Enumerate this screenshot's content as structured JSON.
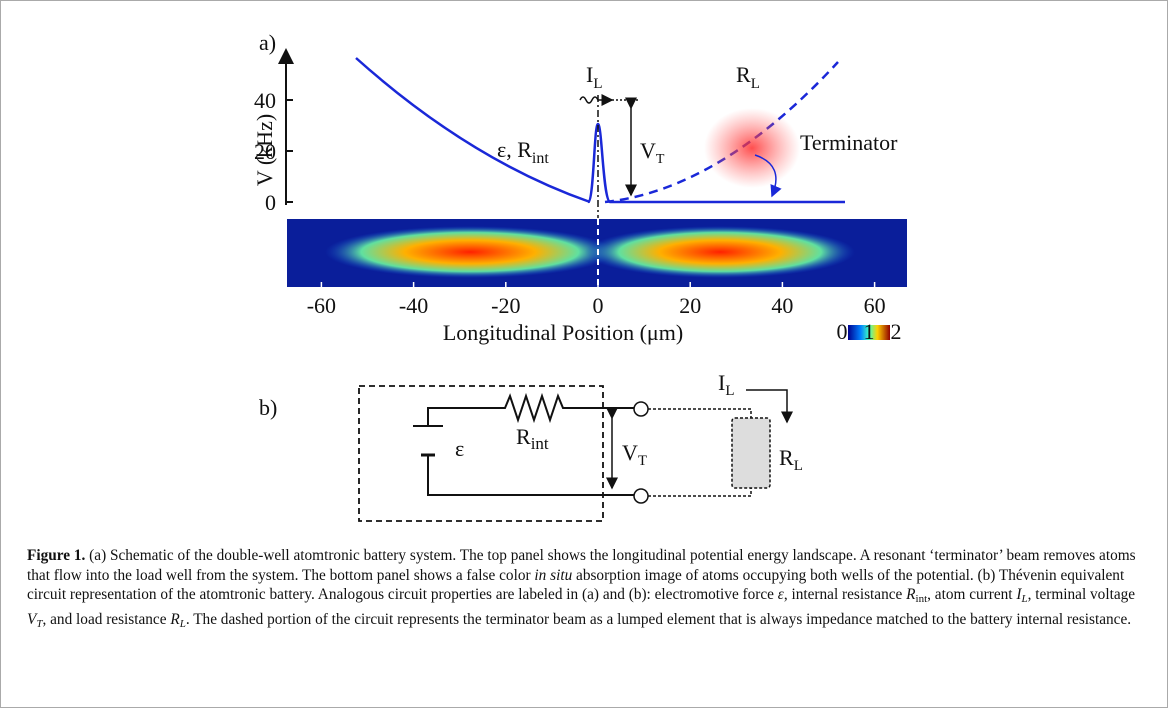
{
  "panel_a": {
    "label": "a)",
    "y_axis_label": "V (kHz)",
    "yticks": [
      0,
      20,
      40
    ],
    "xticks": [
      -60,
      -40,
      -20,
      0,
      20,
      40,
      60
    ],
    "x_axis_label": "Longitudinal Position (μm)",
    "colorbar_ticks": [
      0,
      1,
      2
    ],
    "current": {
      "main": "I",
      "sub": "L"
    },
    "load": {
      "main": "R",
      "sub": "L"
    },
    "emf": {
      "main": "ε, R",
      "sub": "int"
    },
    "voltage": {
      "main": "V",
      "sub": "T"
    },
    "terminator": "Terminator"
  },
  "panel_b": {
    "label": "b)",
    "emf": "ε",
    "r_int": {
      "main": "R",
      "sub": "int"
    },
    "voltage": {
      "main": "V",
      "sub": "T"
    },
    "current": {
      "main": "I",
      "sub": "L"
    },
    "load": {
      "main": "R",
      "sub": "L"
    }
  },
  "caption": [
    {
      "text": "Figure 1.",
      "style": "bold"
    },
    {
      "text": " (a) Schematic of the double-well atomtronic battery system. The top panel shows the longitudinal potential energy landscape. A resonant ‘terminator’ beam removes atoms that flow into the load well from the system. The bottom panel shows a false color ",
      "style": "plain"
    },
    {
      "text": "in situ",
      "style": "italic"
    },
    {
      "text": " absorption image of atoms occupying both wells of the potential. (b) Thévenin equivalent circuit representation of the atomtronic battery. Analogous circuit properties are labeled in (a) and (b): electromotive force ",
      "style": "plain"
    },
    {
      "text": "ε",
      "style": "italic"
    },
    {
      "text": ", internal resistance ",
      "style": "plain"
    },
    {
      "text": "R",
      "style": "italic"
    },
    {
      "text": "int",
      "style": "sub"
    },
    {
      "text": ", atom current ",
      "style": "plain"
    },
    {
      "text": "I",
      "style": "italic"
    },
    {
      "text": "L",
      "style": "italic-sub"
    },
    {
      "text": ", terminal voltage ",
      "style": "plain"
    },
    {
      "text": "V",
      "style": "italic"
    },
    {
      "text": "T",
      "style": "italic-sub"
    },
    {
      "text": ", and load resistance ",
      "style": "plain"
    },
    {
      "text": "R",
      "style": "italic"
    },
    {
      "text": "L",
      "style": "italic-sub"
    },
    {
      "text": ". The dashed portion of the circuit represents the terminator beam as a lumped element that is always impedance matched to the battery internal resistance.",
      "style": "plain"
    }
  ]
}
